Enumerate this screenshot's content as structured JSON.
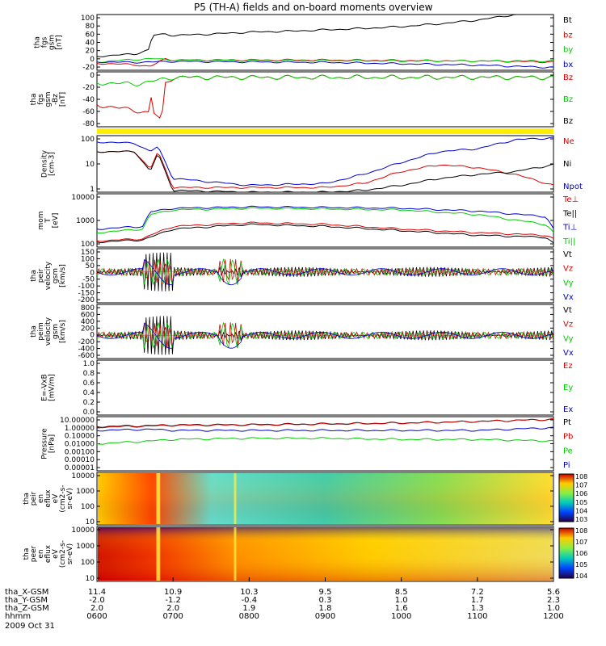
{
  "title": "P5 (TH-A) fields and on-board moments overview",
  "date": "2009 Oct 31",
  "footer": {
    "row_labels": [
      "tha_X-GSM",
      "tha_Y-GSM",
      "tha_Z-GSM",
      "hhmm"
    ],
    "columns": [
      {
        "x": "11.4",
        "y": "-2.0",
        "z": "2.0",
        "t": "0600"
      },
      {
        "x": "10.9",
        "y": "-1.2",
        "z": "2.0",
        "t": "0700"
      },
      {
        "x": "10.3",
        "y": "-0.4",
        "z": "1.9",
        "t": "0800"
      },
      {
        "x": "9.5",
        "y": "0.3",
        "z": "1.8",
        "t": "0900"
      },
      {
        "x": "8.5",
        "y": "1.0",
        "z": "1.6",
        "t": "1000"
      },
      {
        "x": "7.2",
        "y": "1.7",
        "z": "1.3",
        "t": "1100"
      },
      {
        "x": "5.6",
        "y": "2.3",
        "z": "1.0",
        "t": "1200"
      }
    ]
  },
  "colors": {
    "black": "#000000",
    "red": "#dd0000",
    "green": "#00cc00",
    "blue": "#0000cc",
    "yellow": "#ffee00"
  },
  "chart_data": {
    "type": "line",
    "x_range_hours": [
      6,
      12
    ],
    "panels": [
      {
        "id": "fgs",
        "ylabel": [
          "tha",
          "fgs",
          "gsm",
          "[nT]"
        ],
        "ylim": [
          -20,
          100
        ],
        "ticks": [
          "100",
          "80",
          "60",
          "40",
          "20",
          "0",
          "-20"
        ],
        "legend": [
          {
            "text": "Bt",
            "color": "#000000"
          },
          {
            "text": "bz",
            "color": "#dd0000"
          },
          {
            "text": "by",
            "color": "#00cc00"
          },
          {
            "text": "bx",
            "color": "#0000cc"
          }
        ],
        "series": [
          {
            "name": "Bt",
            "color": "#000000",
            "x": [
              6.0,
              6.5,
              6.7,
              6.72,
              6.9,
              7.0,
              7.5,
              8.0,
              8.5,
              9.0,
              9.5,
              10.0,
              10.5,
              11.0,
              11.5,
              12.0
            ],
            "y": [
              10,
              15,
              25,
              55,
              58,
              55,
              58,
              62,
              64,
              67,
              70,
              74,
              80,
              88,
              100,
              110
            ]
          },
          {
            "name": "bz",
            "color": "#dd0000",
            "x": [
              6.0,
              6.5,
              6.7,
              6.9,
              7.0,
              8.0,
              9.0,
              10.0,
              11.0,
              12.0
            ],
            "y": [
              -5,
              -8,
              -12,
              5,
              2,
              2,
              2,
              1,
              0,
              -2
            ]
          },
          {
            "name": "by",
            "color": "#00cc00",
            "x": [
              6.0,
              6.5,
              6.7,
              7.0,
              8.0,
              9.0,
              10.0,
              11.0,
              12.0
            ],
            "y": [
              -2,
              3,
              5,
              2,
              1,
              1,
              0,
              0,
              0
            ]
          },
          {
            "name": "bx",
            "color": "#0000cc",
            "x": [
              6.0,
              6.5,
              7.0,
              8.0,
              9.0,
              10.0,
              11.0,
              12.0
            ],
            "y": [
              -2,
              -3,
              -1,
              -2,
              -3,
              -6,
              -9,
              -14
            ]
          }
        ]
      },
      {
        "id": "fgs_ebz",
        "ylabel": [
          "tha",
          "fgs",
          "gsm",
          "-Bz",
          "[nT]"
        ],
        "ylim": [
          -90,
          10
        ],
        "ticks": [
          "0",
          "-20",
          "-40",
          "-60",
          "-80"
        ],
        "legend": [
          {
            "text": "Bz",
            "color": "#dd0000"
          },
          {
            "text": "Bz",
            "color": "#00cc00"
          },
          {
            "text": "Bz",
            "color": "#000000"
          }
        ],
        "series": [
          {
            "name": "Bz",
            "color": "#dd0000",
            "x": [
              6.0,
              6.5,
              6.7,
              6.72,
              6.75,
              6.85,
              6.9,
              7.0,
              12.0
            ],
            "y": [
              -50,
              -60,
              -65,
              -20,
              -65,
              -80,
              -10,
              0,
              0
            ]
          },
          {
            "name": "Bz",
            "color": "#00cc00",
            "x": [
              6.0,
              6.5,
              6.7,
              7.0,
              12.0
            ],
            "y": [
              -10,
              -12,
              -8,
              0,
              0
            ]
          }
        ]
      },
      {
        "id": "bar",
        "color": "#ffee00"
      },
      {
        "id": "density",
        "ylabel": [
          "Density",
          "[cm-3]"
        ],
        "scale": "log",
        "ylim": [
          0.5,
          150
        ],
        "ticks": [
          "100",
          "10",
          "1"
        ],
        "legend": [
          {
            "text": "Ne",
            "color": "#dd0000"
          },
          {
            "text": "Ni",
            "color": "#000000"
          },
          {
            "text": "Npot",
            "color": "#0000cc"
          }
        ],
        "series": [
          {
            "name": "Npot",
            "color": "#0000cc",
            "x": [
              6.0,
              6.5,
              6.7,
              6.8,
              7.0,
              8.0,
              9.0,
              9.5,
              10.0,
              10.5,
              11.0,
              11.5,
              12.0
            ],
            "y": [
              80,
              70,
              30,
              50,
              2,
              1,
              1.2,
              3,
              10,
              30,
              40,
              100,
              120
            ]
          },
          {
            "name": "Ne",
            "color": "#dd0000",
            "x": [
              6.0,
              6.5,
              6.7,
              6.8,
              7.0,
              8.0,
              9.0,
              9.5,
              10.0,
              10.5,
              11.0,
              11.5,
              12.0
            ],
            "y": [
              30,
              30,
              5,
              30,
              0.8,
              0.8,
              0.8,
              1.2,
              4,
              8,
              6,
              3,
              1
            ]
          },
          {
            "name": "Ni",
            "color": "#000000",
            "x": [
              6.0,
              6.5,
              6.7,
              6.8,
              7.0,
              8.0,
              9.0,
              9.5,
              10.0,
              10.5,
              11.0,
              11.5,
              12.0
            ],
            "y": [
              30,
              30,
              4,
              25,
              0.6,
              0.5,
              0.5,
              0.6,
              1,
              2,
              3,
              4,
              8
            ]
          }
        ]
      },
      {
        "id": "temperature",
        "ylabel": [
          "mom",
          "T",
          "[eV]"
        ],
        "scale": "log",
        "ylim": [
          40,
          15000
        ],
        "ticks": [
          "10000",
          "1000",
          "100"
        ],
        "legend": [
          {
            "text": "Te⊥",
            "color": "#dd0000"
          },
          {
            "text": "Te||",
            "color": "#000000"
          },
          {
            "text": "Ti⊥",
            "color": "#0000cc"
          },
          {
            "text": "Ti||",
            "color": "#00cc00"
          }
        ],
        "series": [
          {
            "name": "Ti⊥",
            "color": "#0000cc",
            "x": [
              6.0,
              6.6,
              6.7,
              7.0,
              8.0,
              9.0,
              10.0,
              11.0,
              11.9,
              12.0
            ],
            "y": [
              300,
              400,
              2000,
              3000,
              3500,
              3300,
              3000,
              2200,
              1200,
              300
            ]
          },
          {
            "name": "Ti||",
            "color": "#00cc00",
            "x": [
              6.0,
              6.6,
              6.7,
              7.0,
              8.0,
              9.0,
              10.0,
              11.0,
              11.9,
              12.0
            ],
            "y": [
              200,
              300,
              1500,
              2500,
              3000,
              2800,
              2500,
              1500,
              500,
              200
            ]
          },
          {
            "name": "Te⊥",
            "color": "#dd0000",
            "x": [
              6.0,
              6.6,
              6.7,
              7.0,
              8.0,
              9.0,
              10.0,
              11.0,
              11.9,
              12.0
            ],
            "y": [
              80,
              100,
              150,
              400,
              600,
              500,
              300,
              200,
              150,
              100
            ]
          },
          {
            "name": "Te||",
            "color": "#000000",
            "x": [
              6.0,
              6.6,
              6.7,
              7.0,
              8.0,
              9.0,
              10.0,
              11.0,
              11.9,
              12.0
            ],
            "y": [
              70,
              90,
              120,
              300,
              500,
              400,
              250,
              150,
              120,
              60
            ]
          }
        ]
      },
      {
        "id": "peir_vel",
        "ylabel": [
          "tha",
          "peir",
          "velocity",
          "gsm",
          "[km/s]"
        ],
        "ylim": [
          -200,
          150
        ],
        "ticks": [
          "150",
          "100",
          "50",
          "0",
          "-50",
          "-100",
          "-150",
          "-200"
        ],
        "legend": [
          {
            "text": "Vt",
            "color": "#000000"
          },
          {
            "text": "Vz",
            "color": "#dd0000"
          },
          {
            "text": "Vy",
            "color": "#00cc00"
          },
          {
            "text": "Vx",
            "color": "#0000cc"
          }
        ]
      },
      {
        "id": "peim_vel",
        "ylabel": [
          "tha",
          "peim",
          "velocity",
          "gsm",
          "[km/s]"
        ],
        "ylim": [
          -600,
          800
        ],
        "ticks": [
          "800",
          "600",
          "400",
          "200",
          "0",
          "-200",
          "-400",
          "-600"
        ],
        "legend": [
          {
            "text": "Vt",
            "color": "#000000"
          },
          {
            "text": "Vz",
            "color": "#dd0000"
          },
          {
            "text": "Vy",
            "color": "#00cc00"
          },
          {
            "text": "Vx",
            "color": "#0000cc"
          }
        ]
      },
      {
        "id": "efield",
        "ylabel": [
          "E=-VxB",
          "[mV/m]"
        ],
        "ylim": [
          0,
          1
        ],
        "ticks": [
          "1.0",
          "0.8",
          "0.6",
          "0.4",
          "0.2",
          "0.0"
        ],
        "legend": [
          {
            "text": "Ez",
            "color": "#dd0000"
          },
          {
            "text": "Ey",
            "color": "#00cc00"
          },
          {
            "text": "Ex",
            "color": "#0000cc"
          }
        ]
      },
      {
        "id": "pressure",
        "ylabel": [
          "Pressure",
          "[nPa]"
        ],
        "scale": "log",
        "ylim": [
          1e-05,
          10
        ],
        "ticks": [
          "10.00000",
          "1.00000",
          "0.10000",
          "0.01000",
          "0.00100",
          "0.00010",
          "0.00001"
        ],
        "legend": [
          {
            "text": "Pt",
            "color": "#000000"
          },
          {
            "text": "Pb",
            "color": "#dd0000"
          },
          {
            "text": "Pe",
            "color": "#00cc00"
          },
          {
            "text": "Pi",
            "color": "#0000cc"
          }
        ],
        "series": [
          {
            "name": "Pt",
            "color": "#000000",
            "x": [
              6.0,
              6.7,
              7.0,
              8.0,
              9.0,
              10.0,
              11.0,
              12.0
            ],
            "y": [
              0.8,
              1.0,
              1.2,
              1.3,
              1.6,
              2.0,
              3.0,
              5.0
            ]
          },
          {
            "name": "Pb",
            "color": "#dd0000",
            "x": [
              6.0,
              6.7,
              7.0,
              8.0,
              9.0,
              10.0,
              11.0,
              12.0
            ],
            "y": [
              0.7,
              0.9,
              1.1,
              1.2,
              1.5,
              1.9,
              2.9,
              5.0
            ]
          },
          {
            "name": "Pi",
            "color": "#0000cc",
            "x": [
              6.0,
              6.7,
              7.0,
              8.0,
              9.0,
              10.0,
              11.0,
              12.0
            ],
            "y": [
              0.3,
              0.4,
              0.3,
              0.3,
              0.3,
              0.3,
              0.3,
              0.6
            ]
          },
          {
            "name": "Pe",
            "color": "#00cc00",
            "x": [
              6.0,
              6.7,
              7.0,
              8.0,
              9.0,
              10.0,
              11.0,
              12.0
            ],
            "y": [
              0.01,
              0.02,
              0.03,
              0.04,
              0.04,
              0.03,
              0.03,
              0.02
            ]
          }
        ]
      },
      {
        "id": "ion_spec",
        "ylabel": [
          "tha",
          "peir",
          "en",
          "eflux",
          "eV",
          "(cm^2-s-",
          "sr-eV)"
        ],
        "ticks": [
          "10000",
          "1000",
          "100",
          "10"
        ],
        "colorbar": [
          "10^8",
          "10^7",
          "10^6",
          "10^5",
          "10^4",
          "10^3"
        ]
      },
      {
        "id": "el_spec",
        "ylabel": [
          "tha",
          "peer",
          "en",
          "eflux",
          "eV",
          "(cm^2-s-",
          "sr-eV)"
        ],
        "ticks": [
          "10000",
          "1000",
          "100",
          "10"
        ],
        "colorbar": [
          "10^8",
          "10^7",
          "10^6",
          "10^5",
          "10^4"
        ]
      }
    ]
  }
}
